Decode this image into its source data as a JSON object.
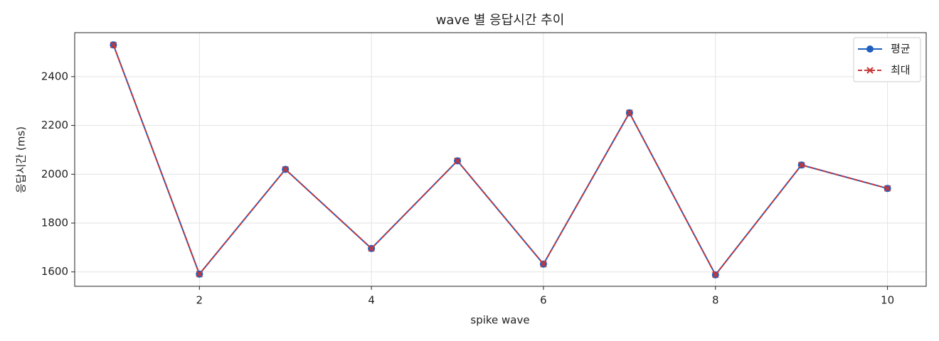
{
  "chart_data": {
    "type": "line",
    "title": "wave 별 응답시간 추이",
    "x_label": "spike wave",
    "y_label": "응답시간 (ms)",
    "x": [
      1,
      2,
      3,
      4,
      5,
      6,
      7,
      8,
      9,
      10
    ],
    "series": [
      {
        "name": "평균",
        "color": "#1f5fbf",
        "marker": "o",
        "dash": false,
        "values": [
          2530,
          1591,
          2020,
          1696,
          2055,
          1632,
          2252,
          1588,
          2038,
          1942
        ]
      },
      {
        "name": "최대",
        "color": "#c93636",
        "marker": "x",
        "dash": true,
        "values": [
          2530,
          1591,
          2020,
          1696,
          2055,
          1632,
          2252,
          1588,
          2038,
          1942
        ]
      }
    ],
    "xlim": [
      0.55,
      10.45
    ],
    "ylim": [
      1541,
      2580
    ],
    "xticks": [
      2,
      4,
      6,
      8,
      10
    ],
    "yticks": [
      1600,
      1800,
      2000,
      2200,
      2400
    ],
    "grid": true,
    "legend": "upper right"
  }
}
